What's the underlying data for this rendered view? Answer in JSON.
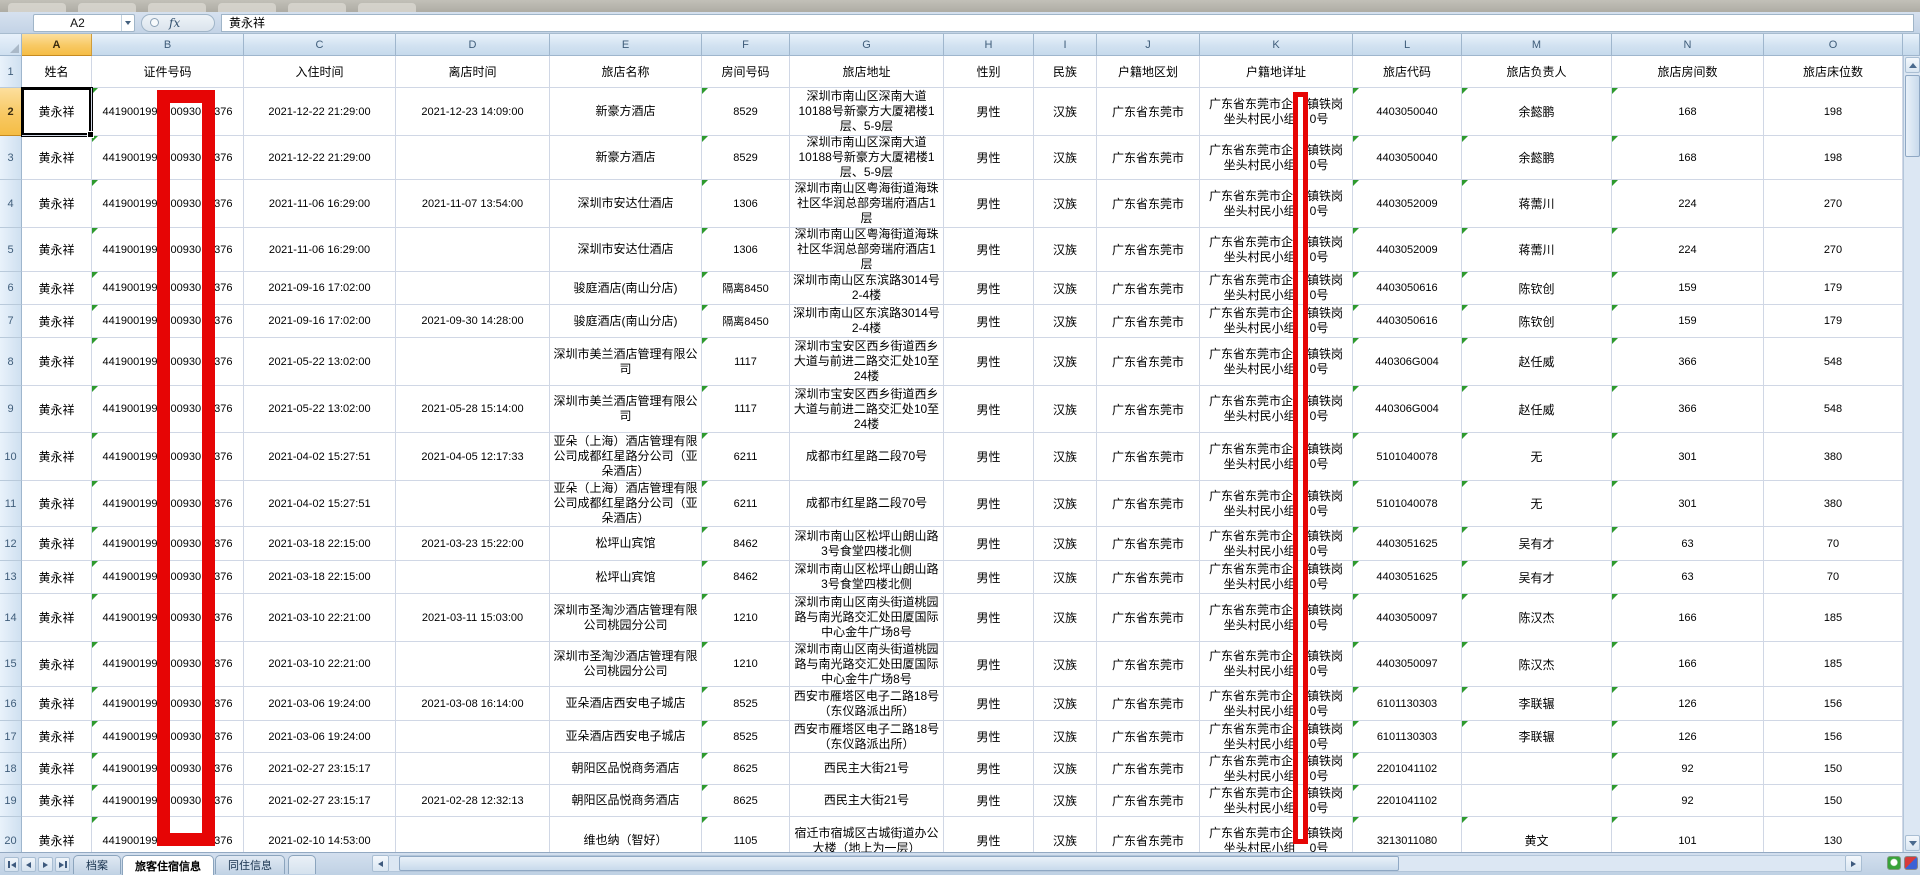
{
  "chrome": {
    "name_box": "A2",
    "fx": "fx",
    "formula": "黄永祥"
  },
  "columns": [
    "A",
    "B",
    "C",
    "D",
    "E",
    "F",
    "G",
    "H",
    "I",
    "J",
    "K",
    "L",
    "M",
    "N",
    "O"
  ],
  "headers": [
    "姓名",
    "证件号码",
    "入住时间",
    "离店时间",
    "旅店名称",
    "房间号码",
    "旅店地址",
    "性别",
    "民族",
    "户籍地区划",
    "户籍地详址",
    "旅店代码",
    "旅店负责人",
    "旅店房间数",
    "旅店床位数"
  ],
  "person": {
    "name": "黄永祥",
    "id_parts": [
      "441900199",
      "00930",
      "376"
    ],
    "sex": "男性",
    "ethnicity": "汉族",
    "region": "广东省东莞市",
    "household": {
      "l1a": "广东省东莞市企",
      "l1b": "镇铁岗",
      "l2a": "坐头村民小组",
      "l2b": "0号"
    }
  },
  "rows": [
    {
      "n": 2,
      "in": "2021-12-22 21:29:00",
      "out": "2021-12-23 14:09:00",
      "hotel": "新豪方酒店",
      "room": "8529",
      "addr": "深圳市南山区深南大道10188号新豪方大厦裙楼1层、5-9层",
      "code": "4403050040",
      "mgr": "余懿鹏",
      "rooms": "168",
      "beds": "198"
    },
    {
      "n": 3,
      "in": "2021-12-22 21:29:00",
      "out": "",
      "hotel": "新豪方酒店",
      "room": "8529",
      "addr": "深圳市南山区深南大道10188号新豪方大厦裙楼1层、5-9层",
      "code": "4403050040",
      "mgr": "余懿鹏",
      "rooms": "168",
      "beds": "198"
    },
    {
      "n": 4,
      "in": "2021-11-06 16:29:00",
      "out": "2021-11-07 13:54:00",
      "hotel": "深圳市安达仕酒店",
      "room": "1306",
      "addr": "深圳市南山区粤海街道海珠社区华润总部旁瑞府酒店1层",
      "code": "4403052009",
      "mgr": "蒋薷川",
      "rooms": "224",
      "beds": "270"
    },
    {
      "n": 5,
      "in": "2021-11-06 16:29:00",
      "out": "",
      "hotel": "深圳市安达仕酒店",
      "room": "1306",
      "addr": "深圳市南山区粤海街道海珠社区华润总部旁瑞府酒店1层",
      "code": "4403052009",
      "mgr": "蒋薷川",
      "rooms": "224",
      "beds": "270"
    },
    {
      "n": 6,
      "in": "2021-09-16 17:02:00",
      "out": "",
      "hotel": "骏庭酒店(南山分店)",
      "room": "隔离8450",
      "addr": "深圳市南山区东滨路3014号2-4楼",
      "code": "4403050616",
      "mgr": "陈钦创",
      "rooms": "159",
      "beds": "179"
    },
    {
      "n": 7,
      "in": "2021-09-16 17:02:00",
      "out": "2021-09-30 14:28:00",
      "hotel": "骏庭酒店(南山分店)",
      "room": "隔离8450",
      "addr": "深圳市南山区东滨路3014号2-4楼",
      "code": "4403050616",
      "mgr": "陈钦创",
      "rooms": "159",
      "beds": "179"
    },
    {
      "n": 8,
      "in": "2021-05-22 13:02:00",
      "out": "",
      "hotel": "深圳市美兰酒店管理有限公司",
      "room": "1117",
      "addr": "深圳市宝安区西乡街道西乡大道与前进二路交汇处10至24楼",
      "code": "440306G004",
      "mgr": "赵任威",
      "rooms": "366",
      "beds": "548"
    },
    {
      "n": 9,
      "in": "2021-05-22 13:02:00",
      "out": "2021-05-28 15:14:00",
      "hotel": "深圳市美兰酒店管理有限公司",
      "room": "1117",
      "addr": "深圳市宝安区西乡街道西乡大道与前进二路交汇处10至24楼",
      "code": "440306G004",
      "mgr": "赵任威",
      "rooms": "366",
      "beds": "548"
    },
    {
      "n": 10,
      "in": "2021-04-02 15:27:51",
      "out": "2021-04-05 12:17:33",
      "hotel": "亚朵（上海）酒店管理有限公司成都红星路分公司（亚朵酒店）",
      "room": "6211",
      "addr": "成都市红星路二段70号",
      "code": "5101040078",
      "mgr": "无",
      "rooms": "301",
      "beds": "380"
    },
    {
      "n": 11,
      "in": "2021-04-02 15:27:51",
      "out": "",
      "hotel": "亚朵（上海）酒店管理有限公司成都红星路分公司（亚朵酒店）",
      "room": "6211",
      "addr": "成都市红星路二段70号",
      "code": "5101040078",
      "mgr": "无",
      "rooms": "301",
      "beds": "380"
    },
    {
      "n": 12,
      "in": "2021-03-18 22:15:00",
      "out": "2021-03-23 15:22:00",
      "hotel": "松坪山宾馆",
      "room": "8462",
      "addr": "深圳市南山区松坪山朗山路3号食堂四楼北侧",
      "code": "4403051625",
      "mgr": "吴有才",
      "rooms": "63",
      "beds": "70"
    },
    {
      "n": 13,
      "in": "2021-03-18 22:15:00",
      "out": "",
      "hotel": "松坪山宾馆",
      "room": "8462",
      "addr": "深圳市南山区松坪山朗山路3号食堂四楼北侧",
      "code": "4403051625",
      "mgr": "吴有才",
      "rooms": "63",
      "beds": "70"
    },
    {
      "n": 14,
      "in": "2021-03-10 22:21:00",
      "out": "2021-03-11 15:03:00",
      "hotel": "深圳市圣淘沙酒店管理有限公司桃园分公司",
      "room": "1210",
      "addr": "深圳市南山区南头街道桃园路与南光路交汇处田厦国际中心金牛广场8号",
      "code": "4403050097",
      "mgr": "陈汉杰",
      "rooms": "166",
      "beds": "185"
    },
    {
      "n": 15,
      "in": "2021-03-10 22:21:00",
      "out": "",
      "hotel": "深圳市圣淘沙酒店管理有限公司桃园分公司",
      "room": "1210",
      "addr": "深圳市南山区南头街道桃园路与南光路交汇处田厦国际中心金牛广场8号",
      "code": "4403050097",
      "mgr": "陈汉杰",
      "rooms": "166",
      "beds": "185"
    },
    {
      "n": 16,
      "in": "2021-03-06 19:24:00",
      "out": "2021-03-08 16:14:00",
      "hotel": "亚朵酒店西安电子城店",
      "room": "8525",
      "addr": "西安市雁塔区电子二路18号（东仪路派出所）",
      "code": "6101130303",
      "mgr": "李联辗",
      "rooms": "126",
      "beds": "156"
    },
    {
      "n": 17,
      "in": "2021-03-06 19:24:00",
      "out": "",
      "hotel": "亚朵酒店西安电子城店",
      "room": "8525",
      "addr": "西安市雁塔区电子二路18号（东仪路派出所）",
      "code": "6101130303",
      "mgr": "李联辗",
      "rooms": "126",
      "beds": "156"
    },
    {
      "n": 18,
      "in": "2021-02-27 23:15:17",
      "out": "",
      "hotel": "朝阳区品悦商务酒店",
      "room": "8625",
      "addr": "西民主大街21号",
      "code": "2201041102",
      "mgr": "",
      "rooms": "92",
      "beds": "150"
    },
    {
      "n": 19,
      "in": "2021-02-27 23:15:17",
      "out": "2021-02-28 12:32:13",
      "hotel": "朝阳区品悦商务酒店",
      "room": "8625",
      "addr": "西民主大街21号",
      "code": "2201041102",
      "mgr": "",
      "rooms": "92",
      "beds": "150"
    },
    {
      "n": 20,
      "in": "2021-02-10 14:53:00",
      "out": "",
      "hotel": "维也纳（智好）",
      "room": "1105",
      "addr": "宿迁市宿城区古城街道办公大楼（地上为一层）",
      "code": "3213011080",
      "mgr": "黄文",
      "rooms": "101",
      "beds": "130"
    }
  ],
  "sheet_tabs": [
    {
      "label": "档案",
      "active": false
    },
    {
      "label": "旅客住宿信息",
      "active": true
    },
    {
      "label": "同住信息",
      "active": false
    }
  ],
  "colors": {
    "annotation_red": "#e60505",
    "selected_header": "#f8c964",
    "gridline": "#d0d7e5"
  }
}
